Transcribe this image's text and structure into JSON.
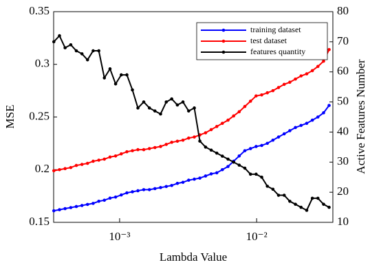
{
  "chart_data": {
    "type": "line",
    "xlabel": "Lambda Value",
    "ylabel": "MSE",
    "y2label": "Active Features Number",
    "xscale": "log",
    "legend": "upper right",
    "xlim": [
      0.00033,
      0.036
    ],
    "xticks": [
      {
        "value": 0.001,
        "label": "10⁻³"
      },
      {
        "value": 0.01,
        "label": "10⁻²"
      }
    ],
    "ylim": [
      0.15,
      0.35
    ],
    "yticks": [
      0.15,
      0.2,
      0.25,
      0.3,
      0.35
    ],
    "y2lim": [
      10,
      80
    ],
    "y2ticks": [
      10,
      20,
      30,
      40,
      50,
      60,
      70,
      80
    ],
    "x": [
      0.000331,
      0.000364,
      0.0004,
      0.00044,
      0.000483,
      0.000531,
      0.000583,
      0.000641,
      0.000705,
      0.000774,
      0.000851,
      0.000935,
      0.001028,
      0.00113,
      0.00124,
      0.00136,
      0.0015,
      0.00165,
      0.00181,
      0.00199,
      0.00219,
      0.0024,
      0.00264,
      0.0029,
      0.00319,
      0.00351,
      0.00385,
      0.00424,
      0.00466,
      0.00512,
      0.00562,
      0.00618,
      0.00679,
      0.00746,
      0.0082,
      0.00902,
      0.00991,
      0.01089,
      0.01197,
      0.01315,
      0.01445,
      0.01589,
      0.01746,
      0.01919,
      0.0211,
      0.0232,
      0.0255,
      0.028,
      0.0308,
      0.0338
    ],
    "series": [
      {
        "name": "training dataset",
        "color": "#0000ff",
        "values": [
          0.161,
          0.162,
          0.163,
          0.164,
          0.165,
          0.166,
          0.167,
          0.168,
          0.17,
          0.171,
          0.173,
          0.174,
          0.176,
          0.178,
          0.179,
          0.18,
          0.181,
          0.181,
          0.182,
          0.183,
          0.184,
          0.185,
          0.187,
          0.188,
          0.19,
          0.191,
          0.192,
          0.194,
          0.196,
          0.197,
          0.2,
          0.203,
          0.208,
          0.213,
          0.218,
          0.22,
          0.222,
          0.223,
          0.225,
          0.228,
          0.231,
          0.234,
          0.237,
          0.24,
          0.242,
          0.244,
          0.247,
          0.25,
          0.254,
          0.261
        ]
      },
      {
        "name": "test dataset",
        "color": "#ff0000",
        "values": [
          0.199,
          0.2,
          0.201,
          0.202,
          0.204,
          0.205,
          0.206,
          0.208,
          0.209,
          0.21,
          0.212,
          0.213,
          0.215,
          0.217,
          0.218,
          0.219,
          0.219,
          0.22,
          0.221,
          0.222,
          0.224,
          0.226,
          0.227,
          0.228,
          0.23,
          0.231,
          0.233,
          0.235,
          0.238,
          0.241,
          0.244,
          0.247,
          0.251,
          0.255,
          0.26,
          0.265,
          0.27,
          0.271,
          0.273,
          0.275,
          0.278,
          0.281,
          0.283,
          0.286,
          0.289,
          0.291,
          0.294,
          0.298,
          0.303,
          0.314
        ]
      },
      {
        "name": "features quantity",
        "color": "#000000",
        "axis": "y2",
        "values": [
          70,
          72,
          68,
          69,
          67,
          66,
          64,
          67,
          67,
          58,
          61,
          56,
          59,
          59,
          54,
          48,
          50,
          48,
          47,
          46,
          50,
          51,
          49,
          50,
          47,
          48,
          37,
          35,
          34,
          33,
          32,
          31,
          30,
          29,
          28,
          26,
          26,
          25,
          22,
          21,
          19,
          19,
          17,
          16,
          15,
          14,
          18,
          18,
          16,
          15
        ]
      }
    ]
  }
}
